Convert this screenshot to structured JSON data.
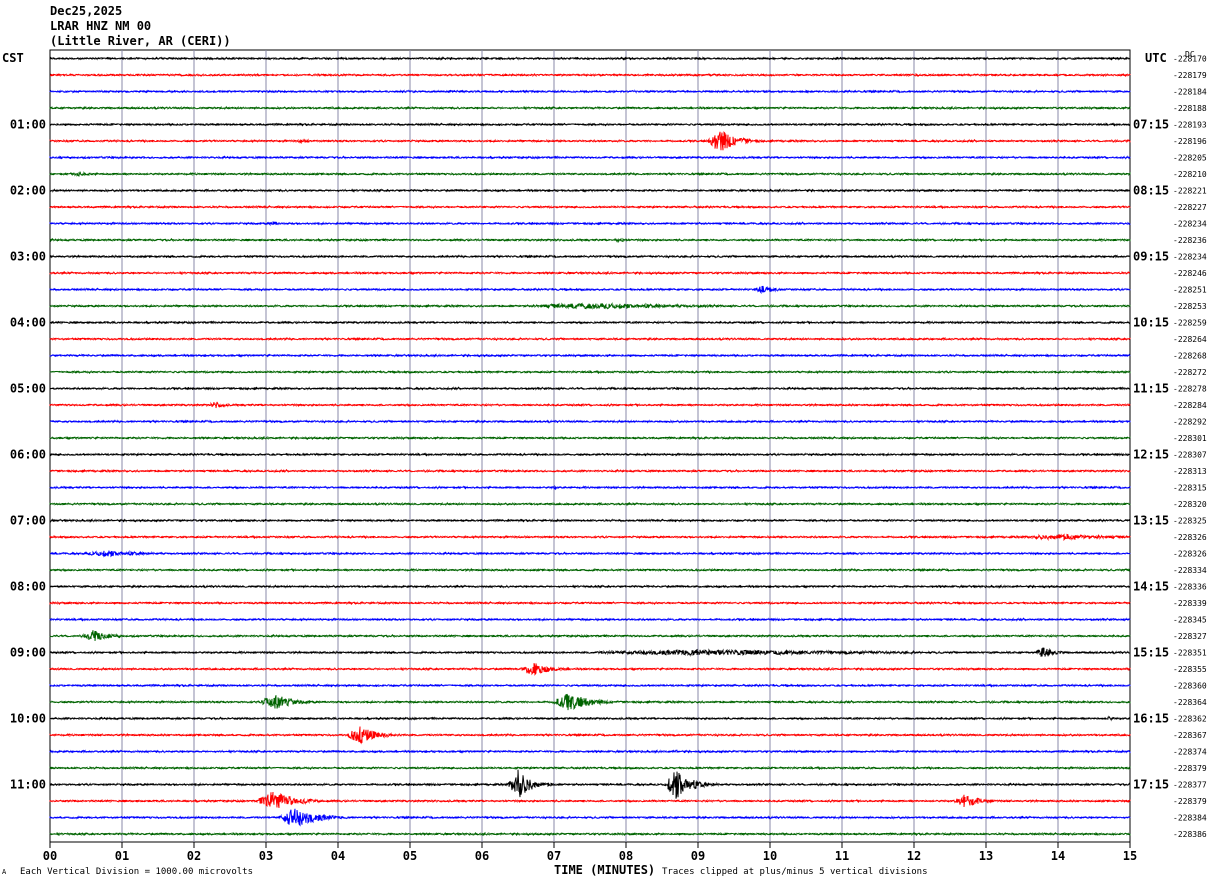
{
  "header": {
    "date": "Dec25,2025",
    "station": "LRAR HNZ NM 00",
    "location": "(Little River, AR (CERI))"
  },
  "left_tz": "CST",
  "right_tz": "UTC",
  "dc_label": "DC",
  "footer": {
    "scale_note": "Each Vertical Division = 1000.00 microvolts",
    "clip_note": "Traces clipped at plus/minus 5 vertical divisions",
    "mark": "A"
  },
  "chart_data": {
    "type": "line",
    "title": "",
    "xlabel": "TIME (MINUTES)",
    "ylabel": "",
    "xlim": [
      0,
      15
    ],
    "x_ticks": [
      "00",
      "01",
      "02",
      "03",
      "04",
      "05",
      "06",
      "07",
      "08",
      "09",
      "10",
      "11",
      "12",
      "13",
      "14",
      "15"
    ],
    "trace_colors": [
      "#000000",
      "#ff0000",
      "#0000ff",
      "#006400"
    ],
    "left_time_labels": [
      "01:00",
      "02:00",
      "03:00",
      "04:00",
      "05:00",
      "06:00",
      "07:00",
      "08:00",
      "09:00",
      "10:00",
      "11:00"
    ],
    "right_time_labels": [
      "07:15",
      "08:15",
      "09:15",
      "10:15",
      "11:15",
      "12:15",
      "13:15",
      "14:15",
      "15:15",
      "16:15",
      "17:15"
    ],
    "series": [
      {
        "dc": "228170",
        "events": []
      },
      {
        "dc": "228179",
        "events": []
      },
      {
        "dc": "228184",
        "events": []
      },
      {
        "dc": "228188",
        "events": []
      },
      {
        "dc": "228193",
        "events": []
      },
      {
        "dc": "228196",
        "events": [
          {
            "t": 3.5,
            "amp": 3,
            "dur": 0.3
          },
          {
            "t": 9.3,
            "amp": 12,
            "dur": 0.7
          }
        ]
      },
      {
        "dc": "228205",
        "events": []
      },
      {
        "dc": "228210",
        "events": [
          {
            "t": 0.4,
            "amp": 3,
            "dur": 0.5
          }
        ]
      },
      {
        "dc": "228221",
        "events": []
      },
      {
        "dc": "228227",
        "events": []
      },
      {
        "dc": "228234",
        "events": [
          {
            "t": 3.1,
            "amp": 2,
            "dur": 0.4
          }
        ]
      },
      {
        "dc": "228236",
        "events": [
          {
            "t": 7.9,
            "amp": 3,
            "dur": 0.3
          }
        ]
      },
      {
        "dc": "228234",
        "events": []
      },
      {
        "dc": "228246",
        "events": []
      },
      {
        "dc": "228251",
        "events": [
          {
            "t": 9.9,
            "amp": 4,
            "dur": 0.6
          }
        ]
      },
      {
        "dc": "228253",
        "events": [
          {
            "t": 7.5,
            "amp": 3,
            "dur": 4.5
          }
        ]
      },
      {
        "dc": "228259",
        "events": []
      },
      {
        "dc": "228264",
        "events": []
      },
      {
        "dc": "228268",
        "events": []
      },
      {
        "dc": "228272",
        "events": []
      },
      {
        "dc": "228278",
        "events": []
      },
      {
        "dc": "228284",
        "events": [
          {
            "t": 2.3,
            "amp": 4,
            "dur": 0.4
          }
        ]
      },
      {
        "dc": "228292",
        "events": []
      },
      {
        "dc": "228301",
        "events": []
      },
      {
        "dc": "228307",
        "events": []
      },
      {
        "dc": "228313",
        "events": []
      },
      {
        "dc": "228315",
        "events": [
          {
            "t": 7.0,
            "amp": 2,
            "dur": 0.2
          }
        ]
      },
      {
        "dc": "228320",
        "events": []
      },
      {
        "dc": "228325",
        "events": []
      },
      {
        "dc": "228326",
        "events": [
          {
            "t": 14.0,
            "amp": 3,
            "dur": 2.5
          }
        ]
      },
      {
        "dc": "228326",
        "events": [
          {
            "t": 0.8,
            "amp": 3,
            "dur": 1.8
          }
        ]
      },
      {
        "dc": "228334",
        "events": []
      },
      {
        "dc": "228336",
        "events": []
      },
      {
        "dc": "228339",
        "events": []
      },
      {
        "dc": "228345",
        "events": []
      },
      {
        "dc": "228327",
        "events": [
          {
            "t": 0.6,
            "amp": 6,
            "dur": 0.7
          }
        ]
      },
      {
        "dc": "228351",
        "events": [
          {
            "t": 9.0,
            "amp": 3,
            "dur": 8.0
          },
          {
            "t": 13.8,
            "amp": 6,
            "dur": 0.5
          }
        ]
      },
      {
        "dc": "228355",
        "events": [
          {
            "t": 6.7,
            "amp": 7,
            "dur": 0.8
          }
        ]
      },
      {
        "dc": "228360",
        "events": []
      },
      {
        "dc": "228364",
        "events": [
          {
            "t": 3.1,
            "amp": 9,
            "dur": 0.8
          },
          {
            "t": 7.2,
            "amp": 9,
            "dur": 1.0
          }
        ]
      },
      {
        "dc": "228362",
        "events": [
          {
            "t": 14.7,
            "amp": 2,
            "dur": 0.3
          }
        ]
      },
      {
        "dc": "228367",
        "events": [
          {
            "t": 4.3,
            "amp": 9,
            "dur": 0.8
          }
        ]
      },
      {
        "dc": "228374",
        "events": [
          {
            "t": 8.7,
            "amp": 2,
            "dur": 0.2
          }
        ]
      },
      {
        "dc": "228379",
        "events": []
      },
      {
        "dc": "228377",
        "events": [
          {
            "t": 6.5,
            "amp": 15,
            "dur": 0.6
          },
          {
            "t": 8.7,
            "amp": 15,
            "dur": 0.7
          }
        ]
      },
      {
        "dc": "228379",
        "events": [
          {
            "t": 3.1,
            "amp": 10,
            "dur": 1.0
          },
          {
            "t": 12.7,
            "amp": 7,
            "dur": 0.7
          }
        ]
      },
      {
        "dc": "228384",
        "events": [
          {
            "t": 3.4,
            "amp": 11,
            "dur": 1.0
          }
        ]
      },
      {
        "dc": "228386",
        "events": []
      }
    ]
  }
}
